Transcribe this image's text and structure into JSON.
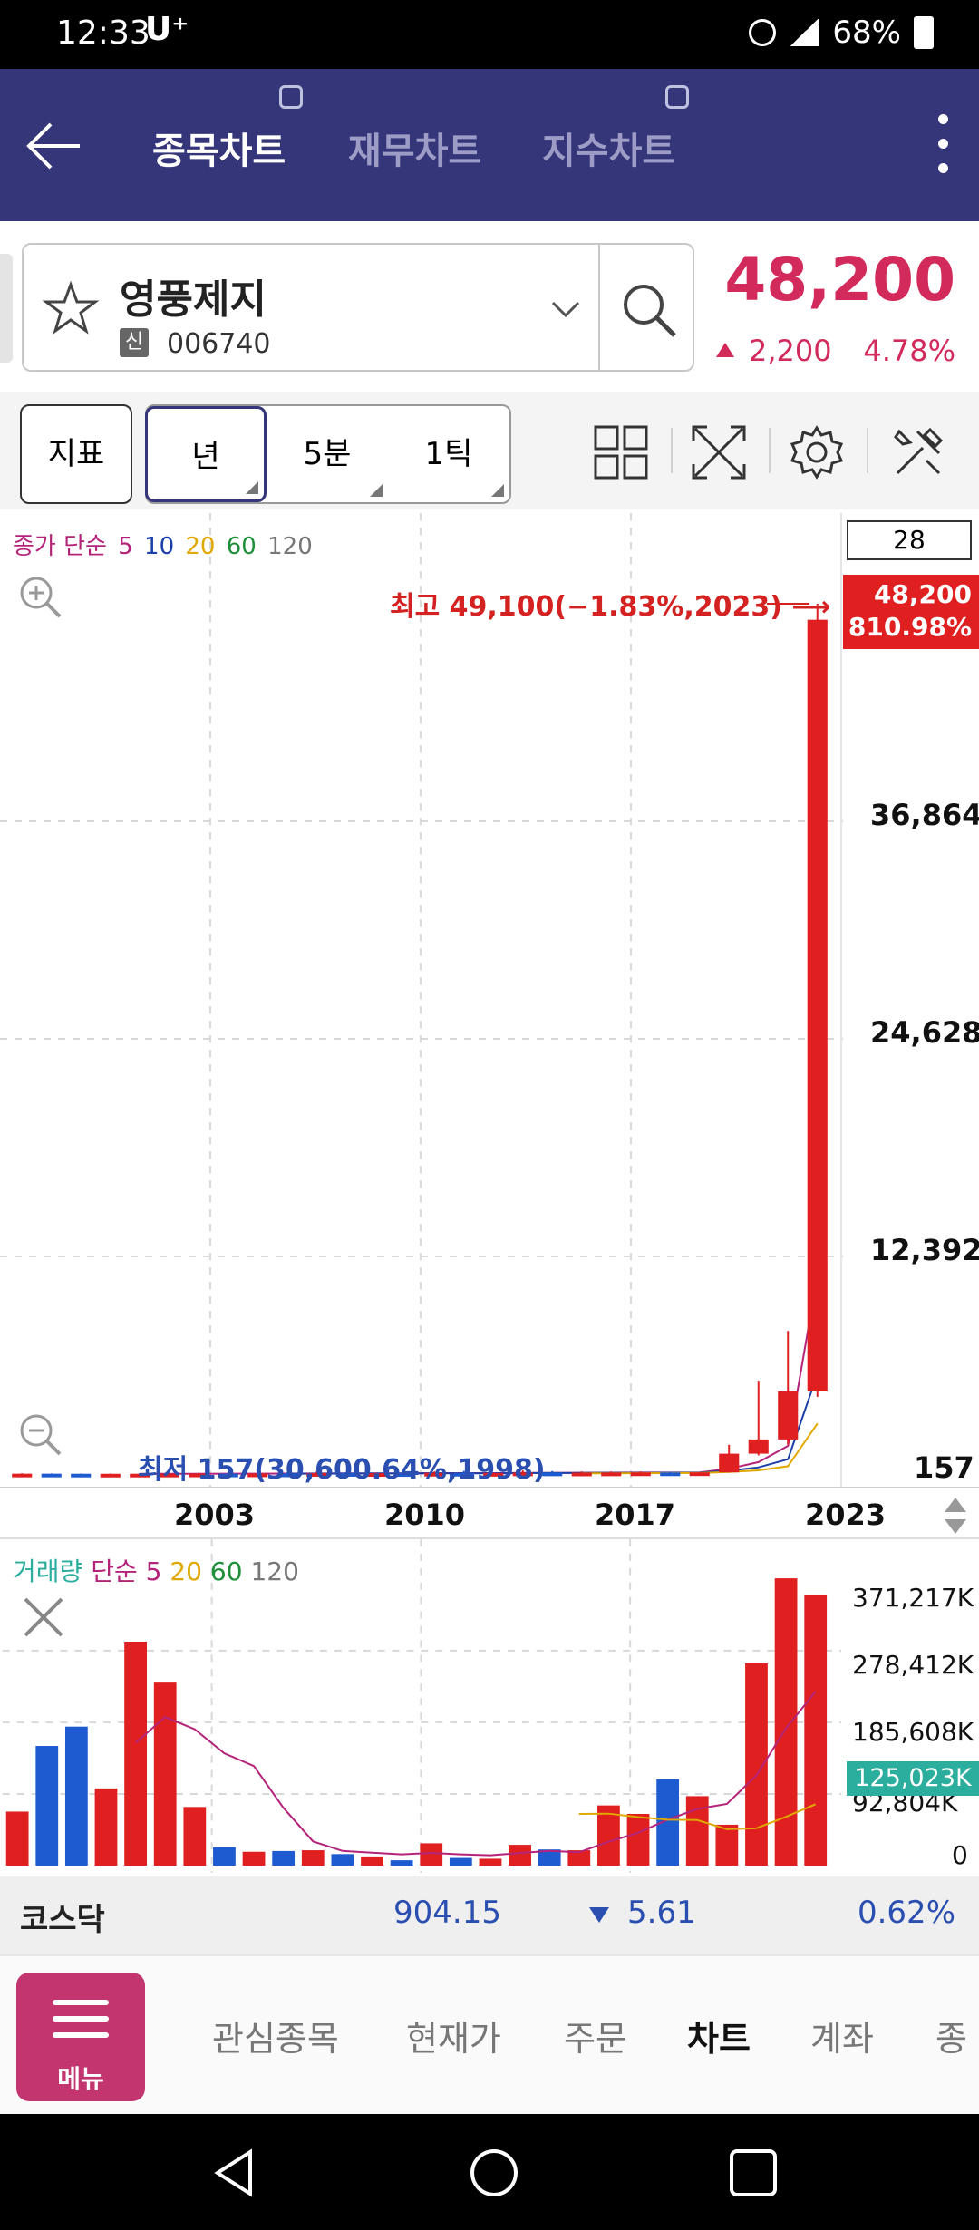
{
  "status_bar": {
    "time": "12:33",
    "carrier": "U⁺",
    "battery": "68%"
  },
  "header": {
    "tabs": [
      {
        "label": "종목차트",
        "active": true
      },
      {
        "label": "재무차트",
        "active": false
      },
      {
        "label": "지수차트",
        "active": false
      }
    ]
  },
  "stock": {
    "name": "영풍제지",
    "badge": "신",
    "code": "006740",
    "price": "48,200",
    "change": "2,200",
    "change_pct": "4.78%",
    "up_color": "#d22a5b"
  },
  "toolbar": {
    "indicator_label": "지표",
    "periods": [
      "년",
      "5분",
      "1틱"
    ]
  },
  "price_chart": {
    "ma_legend": [
      {
        "text": "종가 단순",
        "color": "#b4237a"
      },
      {
        "text": "5",
        "color": "#b4237a"
      },
      {
        "text": "10",
        "color": "#1a3fa8"
      },
      {
        "text": "20",
        "color": "#e0a800"
      },
      {
        "text": "60",
        "color": "#1f8f3a"
      },
      {
        "text": "120",
        "color": "#777777"
      }
    ],
    "count": "28",
    "y_ticks": [
      "36,864",
      "24,628",
      "12,392",
      "157"
    ],
    "current_tag": [
      "48,200",
      "810.98%"
    ],
    "max_label": "최고 49,100(−1.83%,2023) ⟶",
    "min_label": "최저 157(30,600.64%,1998)",
    "years": [
      "2003",
      "2010",
      "2017",
      "2023"
    ]
  },
  "chart_data": [
    {
      "type": "candlestick",
      "title": "",
      "x_ticks": [
        "2003",
        "2010",
        "2017",
        "2023"
      ],
      "y_ticks": [
        157,
        12392,
        24628,
        36864
      ],
      "ylim": [
        157,
        49100
      ],
      "grid": true,
      "candles": [
        {
          "open": 170,
          "close": 175,
          "high": 200,
          "low": 165
        },
        {
          "open": 175,
          "close": 172,
          "high": 190,
          "low": 160
        },
        {
          "open": 172,
          "close": 168,
          "high": 185,
          "low": 160
        },
        {
          "open": 168,
          "close": 170,
          "high": 180,
          "low": 157
        },
        {
          "open": 170,
          "close": 172,
          "high": 200,
          "low": 160
        },
        {
          "open": 172,
          "close": 175,
          "high": 190,
          "low": 165
        },
        {
          "open": 175,
          "close": 180,
          "high": 220,
          "low": 170
        },
        {
          "open": 180,
          "close": 178,
          "high": 240,
          "low": 160
        },
        {
          "open": 178,
          "close": 185,
          "high": 300,
          "low": 170
        },
        {
          "open": 185,
          "close": 182,
          "high": 250,
          "low": 170
        },
        {
          "open": 182,
          "close": 210,
          "high": 300,
          "low": 175
        },
        {
          "open": 210,
          "close": 200,
          "high": 260,
          "low": 190
        },
        {
          "open": 200,
          "close": 205,
          "high": 240,
          "low": 190
        },
        {
          "open": 205,
          "close": 198,
          "high": 230,
          "low": 190
        },
        {
          "open": 198,
          "close": 220,
          "high": 300,
          "low": 190
        },
        {
          "open": 220,
          "close": 210,
          "high": 330,
          "low": 200
        },
        {
          "open": 210,
          "close": 215,
          "high": 240,
          "low": 200
        },
        {
          "open": 215,
          "close": 240,
          "high": 360,
          "low": 205
        },
        {
          "open": 240,
          "close": 235,
          "high": 320,
          "low": 220
        },
        {
          "open": 235,
          "close": 235,
          "high": 300,
          "low": 220
        },
        {
          "open": 235,
          "close": 240,
          "high": 300,
          "low": 220
        },
        {
          "open": 240,
          "close": 245,
          "high": 300,
          "low": 230
        },
        {
          "open": 245,
          "close": 240,
          "high": 280,
          "low": 230
        },
        {
          "open": 240,
          "close": 250,
          "high": 260,
          "low": 230
        },
        {
          "open": 250,
          "close": 1300,
          "high": 1800,
          "low": 240
        },
        {
          "open": 1300,
          "close": 2100,
          "high": 5400,
          "low": 1200
        },
        {
          "open": 2100,
          "close": 4800,
          "high": 8200,
          "low": 1800
        },
        {
          "open": 4800,
          "close": 48200,
          "high": 49100,
          "low": 4500
        }
      ],
      "colors": {
        "up": "#e02020",
        "down": "#1f5bd0"
      }
    },
    {
      "type": "bar",
      "title": "",
      "y_ticks": [
        "371,217K",
        "278,412K",
        "185,608K",
        "92,804K",
        "0"
      ],
      "ylim": [
        0,
        371217
      ],
      "values": [
        70000,
        155000,
        180000,
        100000,
        290000,
        237000,
        76000,
        24000,
        18000,
        19000,
        20000,
        15000,
        12000,
        7000,
        29000,
        10000,
        9000,
        27000,
        21000,
        20000,
        78000,
        67000,
        112000,
        90000,
        53000,
        262000,
        372000,
        350000
      ],
      "colors": {
        "up": "#e02020",
        "down": "#1f5bd0"
      }
    }
  ],
  "volume_chart": {
    "legend": [
      {
        "text": "거래량",
        "color": "#2cae9f"
      },
      {
        "text": "단순",
        "color": "#b4237a"
      },
      {
        "text": "5",
        "color": "#b4237a"
      },
      {
        "text": "20",
        "color": "#e0a800"
      },
      {
        "text": "60",
        "color": "#1f8f3a"
      },
      {
        "text": "120",
        "color": "#777777"
      }
    ],
    "y_ticks": [
      "371,217K",
      "278,412K",
      "185,608K",
      "92,804K",
      "0"
    ],
    "current_tag": "125,023K"
  },
  "index_bar": {
    "name": "코스닥",
    "value": "904.15",
    "change": "5.61",
    "pct": "0.62%",
    "down_color": "#2a4fb0"
  },
  "bottom_nav": {
    "menu_label": "메뉴",
    "items": [
      {
        "label": "관심종목",
        "active": false
      },
      {
        "label": "현재가",
        "active": false
      },
      {
        "label": "주문",
        "active": false
      },
      {
        "label": "차트",
        "active": true
      },
      {
        "label": "계좌",
        "active": false
      },
      {
        "label": "종",
        "active": false
      }
    ]
  }
}
